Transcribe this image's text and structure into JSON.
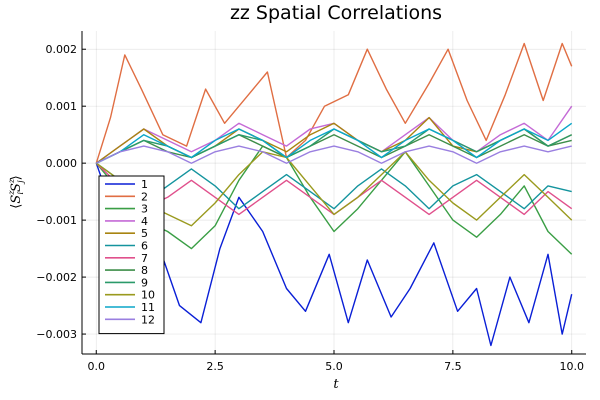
{
  "chart_data": {
    "type": "line",
    "title": "zz Spatial Correlations",
    "xlabel": "t",
    "ylabel": "⟨S_i^z S_j^z⟩",
    "ylabel_parts": {
      "open": "⟨",
      "op": "S",
      "sub_i": "i",
      "sub_j": "j",
      "sup": "z",
      "close": "⟩"
    },
    "xlim": [
      -0.3,
      10.3
    ],
    "ylim": [
      -0.00335,
      0.00232
    ],
    "xticks": [
      0.0,
      2.5,
      5.0,
      7.5,
      10.0
    ],
    "xtick_labels": [
      "0.0",
      "2.5",
      "5.0",
      "7.5",
      "10.0"
    ],
    "yticks": [
      0.002,
      0.001,
      0.0,
      -0.001,
      -0.002,
      -0.003
    ],
    "ytick_labels": [
      "0.002",
      "0.001",
      "0.000",
      "−0.001",
      "−0.002",
      "−0.003"
    ],
    "grid": true,
    "legend_position": "bottom-left",
    "series": [
      {
        "name": "1",
        "color": "#0a1fd6",
        "x": [
          0,
          0.5,
          0.85,
          1.25,
          1.75,
          2.2,
          2.6,
          3.0,
          3.5,
          4.0,
          4.4,
          4.9,
          5.3,
          5.7,
          6.2,
          6.6,
          7.1,
          7.6,
          8.0,
          8.3,
          8.7,
          9.1,
          9.5,
          9.8,
          10.0
        ],
        "y": [
          0.0,
          -0.0012,
          -0.0021,
          -0.0013,
          -0.0025,
          -0.0028,
          -0.0015,
          -0.0006,
          -0.0012,
          -0.0022,
          -0.0026,
          -0.0016,
          -0.0028,
          -0.0017,
          -0.0027,
          -0.0022,
          -0.0014,
          -0.0026,
          -0.0022,
          -0.0032,
          -0.002,
          -0.0028,
          -0.0016,
          -0.003,
          -0.0023
        ]
      },
      {
        "name": "2",
        "color": "#e06e43",
        "x": [
          0,
          0.3,
          0.6,
          0.95,
          1.4,
          1.9,
          2.3,
          2.7,
          3.2,
          3.6,
          4.0,
          4.4,
          4.8,
          5.3,
          5.7,
          6.1,
          6.5,
          7.0,
          7.4,
          7.8,
          8.2,
          8.6,
          9.0,
          9.4,
          9.8,
          10.0
        ],
        "y": [
          0.0,
          0.0008,
          0.0019,
          0.0013,
          0.0005,
          0.0003,
          0.0013,
          0.0007,
          0.0012,
          0.0016,
          0.0001,
          0.0004,
          0.001,
          0.0012,
          0.002,
          0.0013,
          0.0007,
          0.0014,
          0.002,
          0.0011,
          0.0004,
          0.0012,
          0.0021,
          0.0011,
          0.0021,
          0.0017
        ]
      },
      {
        "name": "3",
        "color": "#3a9e45",
        "x": [
          0,
          0.5,
          1.0,
          1.5,
          2.0,
          2.5,
          3.0,
          3.5,
          4.0,
          4.5,
          5.0,
          5.5,
          6.0,
          6.5,
          7.0,
          7.5,
          8.0,
          8.5,
          9.0,
          9.5,
          10.0
        ],
        "y": [
          0.0,
          -0.0005,
          -0.001,
          -0.0012,
          -0.0015,
          -0.0011,
          -0.0003,
          0.0003,
          0.0001,
          -0.0006,
          -0.0012,
          -0.0008,
          -0.0003,
          0.0002,
          -0.0004,
          -0.001,
          -0.0013,
          -0.0009,
          -0.0004,
          -0.0012,
          -0.0016
        ]
      },
      {
        "name": "4",
        "color": "#c46ad6",
        "x": [
          0,
          0.5,
          1.0,
          1.5,
          2.0,
          2.5,
          3.0,
          3.5,
          4.0,
          4.5,
          5.0,
          5.5,
          6.0,
          6.5,
          7.0,
          7.5,
          8.0,
          8.5,
          9.0,
          9.5,
          10.0
        ],
        "y": [
          0.0,
          0.0003,
          0.0006,
          0.0004,
          0.0002,
          0.0004,
          0.0007,
          0.0005,
          0.0003,
          0.0006,
          0.0007,
          0.0004,
          0.0002,
          0.0005,
          0.0008,
          0.0004,
          0.0002,
          0.0005,
          0.0007,
          0.0004,
          0.001
        ]
      },
      {
        "name": "5",
        "color": "#a88411",
        "x": [
          0,
          0.5,
          1.0,
          1.5,
          2.0,
          2.5,
          3.0,
          3.5,
          4.0,
          4.5,
          5.0,
          5.5,
          6.0,
          6.5,
          7.0,
          7.5,
          8.0,
          8.5,
          9.0,
          9.5,
          10.0
        ],
        "y": [
          0.0,
          0.0003,
          0.0006,
          0.0003,
          0.0001,
          0.0003,
          0.0006,
          0.0004,
          0.0002,
          0.0005,
          0.0007,
          0.0004,
          0.0002,
          0.0004,
          0.0008,
          0.0003,
          0.0002,
          0.0004,
          0.0006,
          0.0003,
          0.0005
        ]
      },
      {
        "name": "6",
        "color": "#14949e",
        "x": [
          0,
          0.5,
          1.0,
          1.5,
          2.0,
          2.5,
          3.0,
          3.5,
          4.0,
          4.5,
          5.0,
          5.5,
          6.0,
          6.5,
          7.0,
          7.5,
          8.0,
          8.5,
          9.0,
          9.5,
          10.0
        ],
        "y": [
          0.0,
          -0.0003,
          -0.0007,
          -0.0004,
          -0.0001,
          -0.0004,
          -0.0008,
          -0.0005,
          -0.0002,
          -0.0005,
          -0.0008,
          -0.0004,
          -0.0001,
          -0.0004,
          -0.0008,
          -0.0004,
          -0.0002,
          -0.0005,
          -0.0008,
          -0.0004,
          -0.0005
        ]
      },
      {
        "name": "7",
        "color": "#e0508c",
        "x": [
          0,
          0.5,
          1.0,
          1.5,
          2.0,
          2.5,
          3.0,
          3.5,
          4.0,
          4.5,
          5.0,
          5.5,
          6.0,
          6.5,
          7.0,
          7.5,
          8.0,
          8.5,
          9.0,
          9.5,
          10.0
        ],
        "y": [
          0.0,
          -0.0004,
          -0.0008,
          -0.0006,
          -0.0003,
          -0.0006,
          -0.0009,
          -0.0006,
          -0.0003,
          -0.0006,
          -0.0009,
          -0.0006,
          -0.0003,
          -0.0006,
          -0.0009,
          -0.0006,
          -0.0003,
          -0.0006,
          -0.0009,
          -0.0005,
          -0.0008
        ]
      },
      {
        "name": "8",
        "color": "#3e8e4a",
        "x": [
          0,
          0.5,
          1.0,
          1.5,
          2.0,
          2.5,
          3.0,
          3.5,
          4.0,
          4.5,
          5.0,
          5.5,
          6.0,
          6.5,
          7.0,
          7.5,
          8.0,
          8.5,
          9.0,
          9.5,
          10.0
        ],
        "y": [
          0.0,
          0.0002,
          0.0004,
          0.0002,
          0.0001,
          0.0003,
          0.0005,
          0.0003,
          0.0001,
          0.0003,
          0.0005,
          0.0003,
          0.0001,
          0.0003,
          0.0005,
          0.0003,
          0.0001,
          0.0003,
          0.0005,
          0.0003,
          0.0004
        ]
      },
      {
        "name": "9",
        "color": "#2b9a6a",
        "x": [
          0,
          0.5,
          1.0,
          1.5,
          2.0,
          2.5,
          3.0,
          3.5,
          4.0,
          4.5,
          5.0,
          5.5,
          6.0,
          6.5,
          7.0,
          7.5,
          8.0,
          8.5,
          9.0,
          9.5,
          10.0
        ],
        "y": [
          0.0,
          0.0002,
          0.0004,
          0.0003,
          0.0001,
          0.0003,
          0.0005,
          0.0004,
          0.0001,
          0.0003,
          0.0006,
          0.0004,
          0.0002,
          0.0003,
          0.0006,
          0.0004,
          0.0002,
          0.0004,
          0.0006,
          0.0003,
          0.0005
        ]
      },
      {
        "name": "10",
        "color": "#9a9a1e",
        "x": [
          0,
          0.5,
          1.0,
          1.5,
          2.0,
          2.5,
          3.0,
          3.5,
          4.0,
          4.5,
          5.0,
          5.5,
          6.0,
          6.5,
          7.0,
          7.5,
          8.0,
          8.5,
          9.0,
          9.5,
          10.0
        ],
        "y": [
          0.0,
          -0.0003,
          -0.0007,
          -0.0009,
          -0.0011,
          -0.0007,
          -0.0002,
          0.0002,
          0.0001,
          -0.0004,
          -0.0009,
          -0.0006,
          -0.0002,
          0.0002,
          -0.0003,
          -0.0007,
          -0.001,
          -0.0006,
          -0.0002,
          -0.0006,
          -0.001
        ]
      },
      {
        "name": "11",
        "color": "#0aa6c9",
        "x": [
          0,
          0.5,
          1.0,
          1.5,
          2.0,
          2.5,
          3.0,
          3.5,
          4.0,
          4.5,
          5.0,
          5.5,
          6.0,
          6.5,
          7.0,
          7.5,
          8.0,
          8.5,
          9.0,
          9.5,
          10.0
        ],
        "y": [
          0.0,
          0.0002,
          0.0005,
          0.0003,
          0.0001,
          0.0004,
          0.0006,
          0.0004,
          0.0001,
          0.0004,
          0.0006,
          0.0004,
          0.0001,
          0.0004,
          0.0006,
          0.0004,
          0.0001,
          0.0004,
          0.0006,
          0.0004,
          0.0007
        ]
      },
      {
        "name": "12",
        "color": "#9a7fe0",
        "x": [
          0,
          0.5,
          1.0,
          1.5,
          2.0,
          2.5,
          3.0,
          3.5,
          4.0,
          4.5,
          5.0,
          5.5,
          6.0,
          6.5,
          7.0,
          7.5,
          8.0,
          8.5,
          9.0,
          9.5,
          10.0
        ],
        "y": [
          0.0,
          0.0002,
          0.0003,
          0.0002,
          0.0,
          0.0002,
          0.0003,
          0.0002,
          0.0,
          0.0002,
          0.0003,
          0.0002,
          0.0,
          0.0002,
          0.0003,
          0.0002,
          0.0,
          0.0002,
          0.0003,
          0.0002,
          0.0003
        ]
      }
    ]
  }
}
